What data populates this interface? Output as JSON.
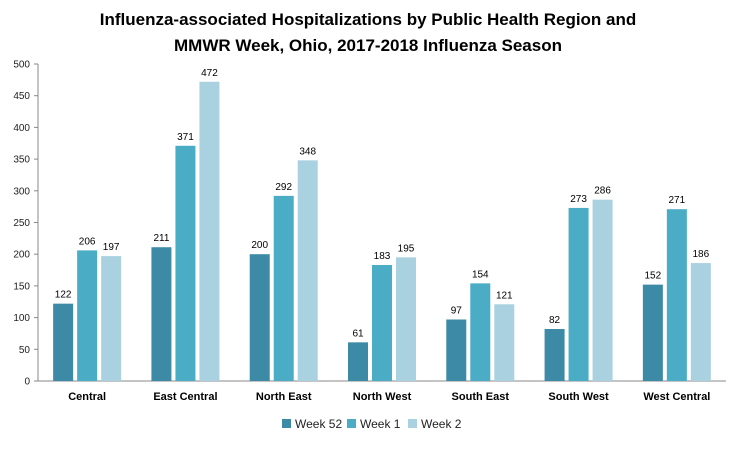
{
  "chart_data": {
    "type": "bar",
    "title_lines": [
      "Influenza-associated Hospitalizations by Public Health Region and",
      "MMWR Week, Ohio, 2017-2018 Influenza Season"
    ],
    "xlabel": "",
    "ylabel": "",
    "ylim": [
      0,
      500
    ],
    "yticks": [
      "0",
      "50",
      "100",
      "150",
      "200",
      "250",
      "300",
      "350",
      "400",
      "450",
      "500"
    ],
    "categories": [
      "Central",
      "East Central",
      "North East",
      "North West",
      "South East",
      "South West",
      "West Central"
    ],
    "series": [
      {
        "name": "Week 52",
        "color": "#3c8aa6",
        "values": [
          122,
          211,
          200,
          61,
          97,
          82,
          152
        ]
      },
      {
        "name": "Week 1",
        "color": "#4bacc6",
        "values": [
          206,
          371,
          292,
          183,
          154,
          273,
          271
        ]
      },
      {
        "name": "Week 2",
        "color": "#a9d1df",
        "values": [
          197,
          472,
          348,
          195,
          121,
          286,
          186
        ]
      }
    ],
    "data_labels": [
      [
        "122",
        "211",
        "200",
        "61",
        "97",
        "82",
        "152"
      ],
      [
        "206",
        "371",
        "292",
        "183",
        "154",
        "273",
        "271"
      ],
      [
        "197",
        "472",
        "348",
        "195",
        "121",
        "286",
        "186"
      ]
    ],
    "grid": false,
    "legend_position": "bottom"
  }
}
